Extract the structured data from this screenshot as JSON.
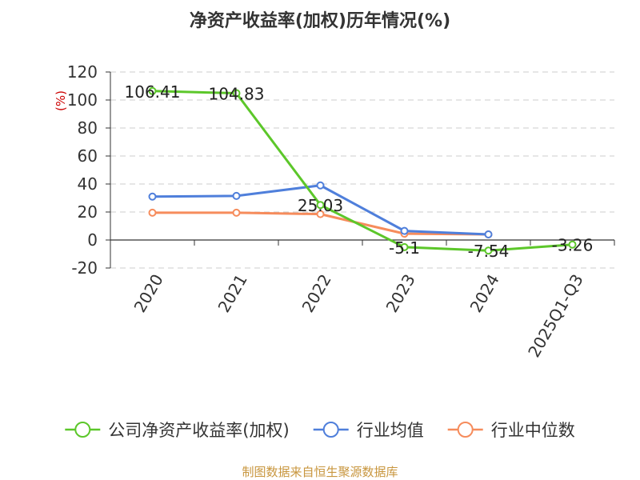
{
  "chart_data": {
    "type": "line",
    "title": "净资产收益率(加权)历年情况(%)",
    "ylabel": "(%)",
    "xlabel": "",
    "categories": [
      "2020",
      "2021",
      "2022",
      "2023",
      "2024",
      "2025Q1-Q3"
    ],
    "ylim": [
      -20,
      120
    ],
    "yticks": [
      -20,
      0,
      20,
      40,
      60,
      80,
      100,
      120
    ],
    "grid": true,
    "legend_position": "bottom",
    "series": [
      {
        "name": "公司净资产收益率(加权)",
        "color": "#5cc72a",
        "values": [
          106.41,
          104.83,
          25.03,
          -5.1,
          -7.54,
          -3.26
        ],
        "labels": [
          "106.41",
          "104.83",
          "25.03",
          "-5.1",
          "-7.54",
          "-3.26"
        ]
      },
      {
        "name": "行业均值",
        "color": "#4f7fdb",
        "values": [
          31,
          31.5,
          39,
          6.5,
          4,
          null
        ]
      },
      {
        "name": "行业中位数",
        "color": "#f68c5c",
        "values": [
          19.5,
          19.5,
          18.5,
          4.5,
          4,
          null
        ]
      }
    ]
  },
  "source_text": "制图数据来自恒生聚源数据库",
  "colors": {
    "axis": "#333333",
    "grid": "#cccccc",
    "ylabel": "#cc0000",
    "source": "#c8963e"
  }
}
